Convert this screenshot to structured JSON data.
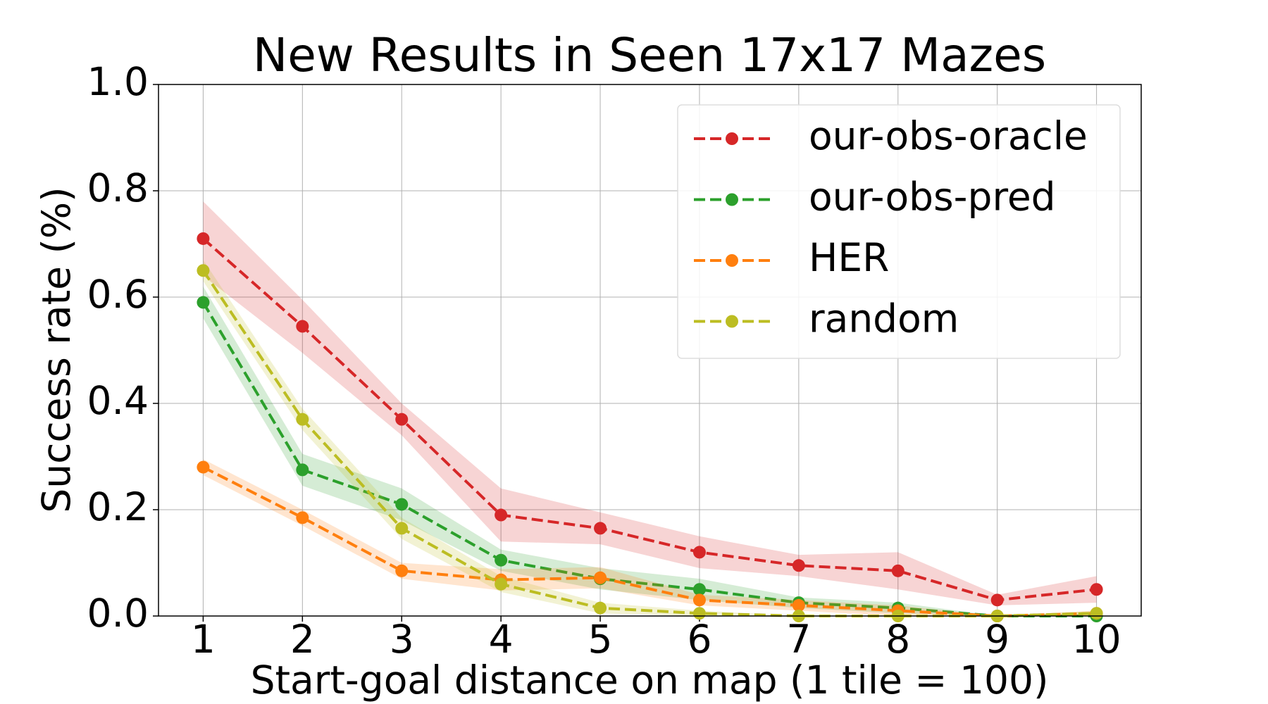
{
  "chart_data": {
    "type": "line",
    "title": "New Results in Seen 17x17 Mazes",
    "xlabel": "Start-goal distance on map (1 tile = 100)",
    "ylabel": "Success rate (%)",
    "x": [
      1,
      2,
      3,
      4,
      5,
      6,
      7,
      8,
      9,
      10
    ],
    "series": [
      {
        "name": "our-obs-oracle",
        "color": "#d62728",
        "values": [
          0.71,
          0.545,
          0.37,
          0.19,
          0.165,
          0.12,
          0.095,
          0.085,
          0.03,
          0.05
        ],
        "error": [
          0.07,
          0.05,
          0.03,
          0.05,
          0.03,
          0.03,
          0.02,
          0.035,
          0.01,
          0.025
        ]
      },
      {
        "name": "our-obs-pred",
        "color": "#2ca02c",
        "values": [
          0.59,
          0.275,
          0.21,
          0.105,
          0.07,
          0.05,
          0.025,
          0.015,
          0,
          0
        ],
        "error": [
          0.03,
          0.03,
          0.03,
          0.02,
          0.02,
          0.02,
          0.01,
          0.01,
          0,
          0
        ]
      },
      {
        "name": "HER",
        "color": "#ff7f0e",
        "values": [
          0.28,
          0.185,
          0.085,
          0.068,
          0.072,
          0.03,
          0.02,
          0.01,
          0,
          0.005
        ],
        "error": [
          0.015,
          0.015,
          0.015,
          0.02,
          0.02,
          0.01,
          0.01,
          0.01,
          0,
          0.005
        ]
      },
      {
        "name": "random",
        "color": "#bcbd22",
        "values": [
          0.65,
          0.37,
          0.165,
          0.06,
          0.015,
          0.005,
          0,
          0,
          0,
          0.005
        ],
        "error": [
          0.02,
          0.02,
          0.02,
          0.015,
          0.01,
          0.005,
          0,
          0,
          0,
          0.005
        ]
      }
    ],
    "xlim": [
      0.55,
      10.45
    ],
    "ylim": [
      0,
      1
    ],
    "xticks": [
      1,
      2,
      3,
      4,
      5,
      6,
      7,
      8,
      9,
      10
    ],
    "yticks": [
      {
        "value": 0,
        "label": "0.0"
      },
      0.2,
      0.4,
      0.6,
      0.8,
      {
        "value": 1,
        "label": "1.0"
      }
    ],
    "grid": true,
    "legend": "upper right"
  }
}
